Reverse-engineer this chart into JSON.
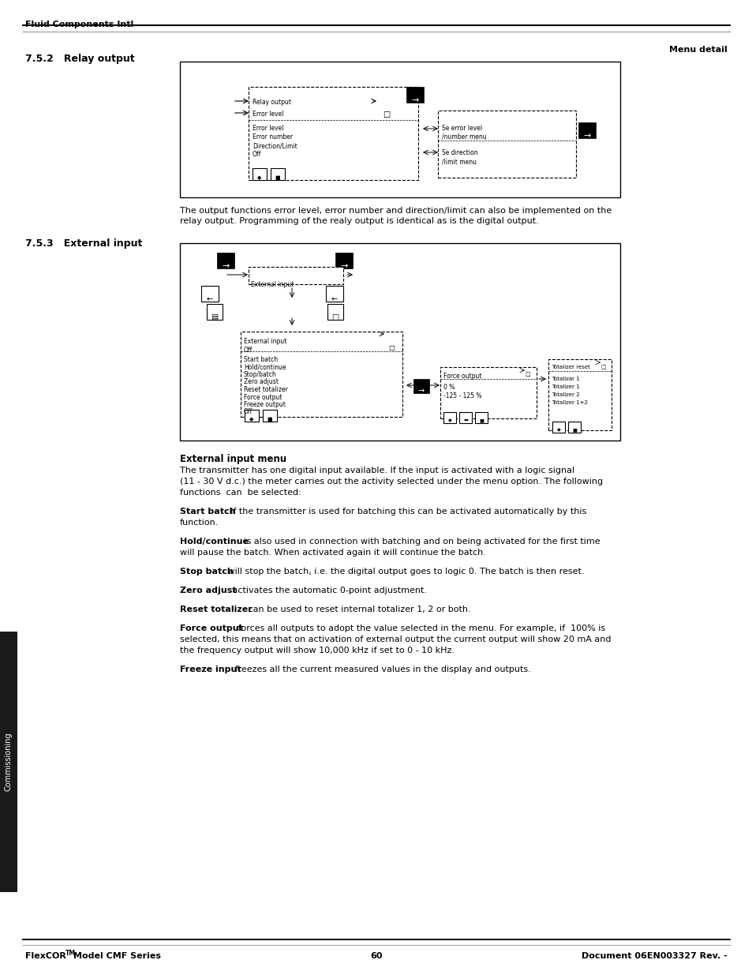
{
  "header_company": "Fluid Components Intl",
  "header_right": "Menu detail",
  "footer_left_1": "FlexCOR",
  "footer_left_tm": "TM",
  "footer_left_2": "Model CMF Series",
  "footer_center": "60",
  "footer_right": "Document 06EN003327 Rev. -",
  "section_752_title": "7.5.2   Relay output",
  "section_753_title": "7.5.3   External input",
  "relay_text_1": "The output functions error level, error number and direction/limit can also be implemented on the",
  "relay_text_2": "relay output. Programming of the realy output is identical as is the digital output.",
  "ext_input_menu_title": "External input menu",
  "ext_input_para0_1": "The transmitter has one digital input available. If the input is activated with a logic signal",
  "ext_input_para0_2": "(11 - 30 V d.c.) the meter carries out the activity selected under the menu option. The following",
  "ext_input_para0_3": "functions  can  be selected:",
  "p1_bold": "Start batch",
  "p1_rest_1": ". If the transmitter is used for batching this can be activated automatically by this",
  "p1_rest_2": "function.",
  "p2_bold": "Hold/continue",
  "p2_rest_1": " is also used in connection with batching and on being activated for the first time",
  "p2_rest_2": "will pause the batch. When activated again it will continue the batch.",
  "p3_bold": "Stop batch",
  "p3_rest": " will stop the batch, i.e. the digital output goes to logic 0. The batch is then reset.",
  "p4_bold": "Zero adjust",
  "p4_rest": " activates the automatic 0-point adjustment.",
  "p5_bold": "Reset totalizer",
  "p5_rest": " can be used to reset internal totalizer 1, 2 or both.",
  "p6_bold": "Force output",
  "p6_rest_1": " forces all outputs to adopt the value selected in the menu. For example, if  100% is",
  "p6_rest_2": "selected, this means that on activation of external output the current output will show 20 mA and",
  "p6_rest_3": "the frequency output will show 10,000 kHz if set to 0 - 10 kHz.",
  "p7_bold": "Freeze input",
  "p7_rest": " freezes all the current measured values in the display and outputs.",
  "sidebar_text": "Commissioning",
  "bg_color": "#ffffff"
}
